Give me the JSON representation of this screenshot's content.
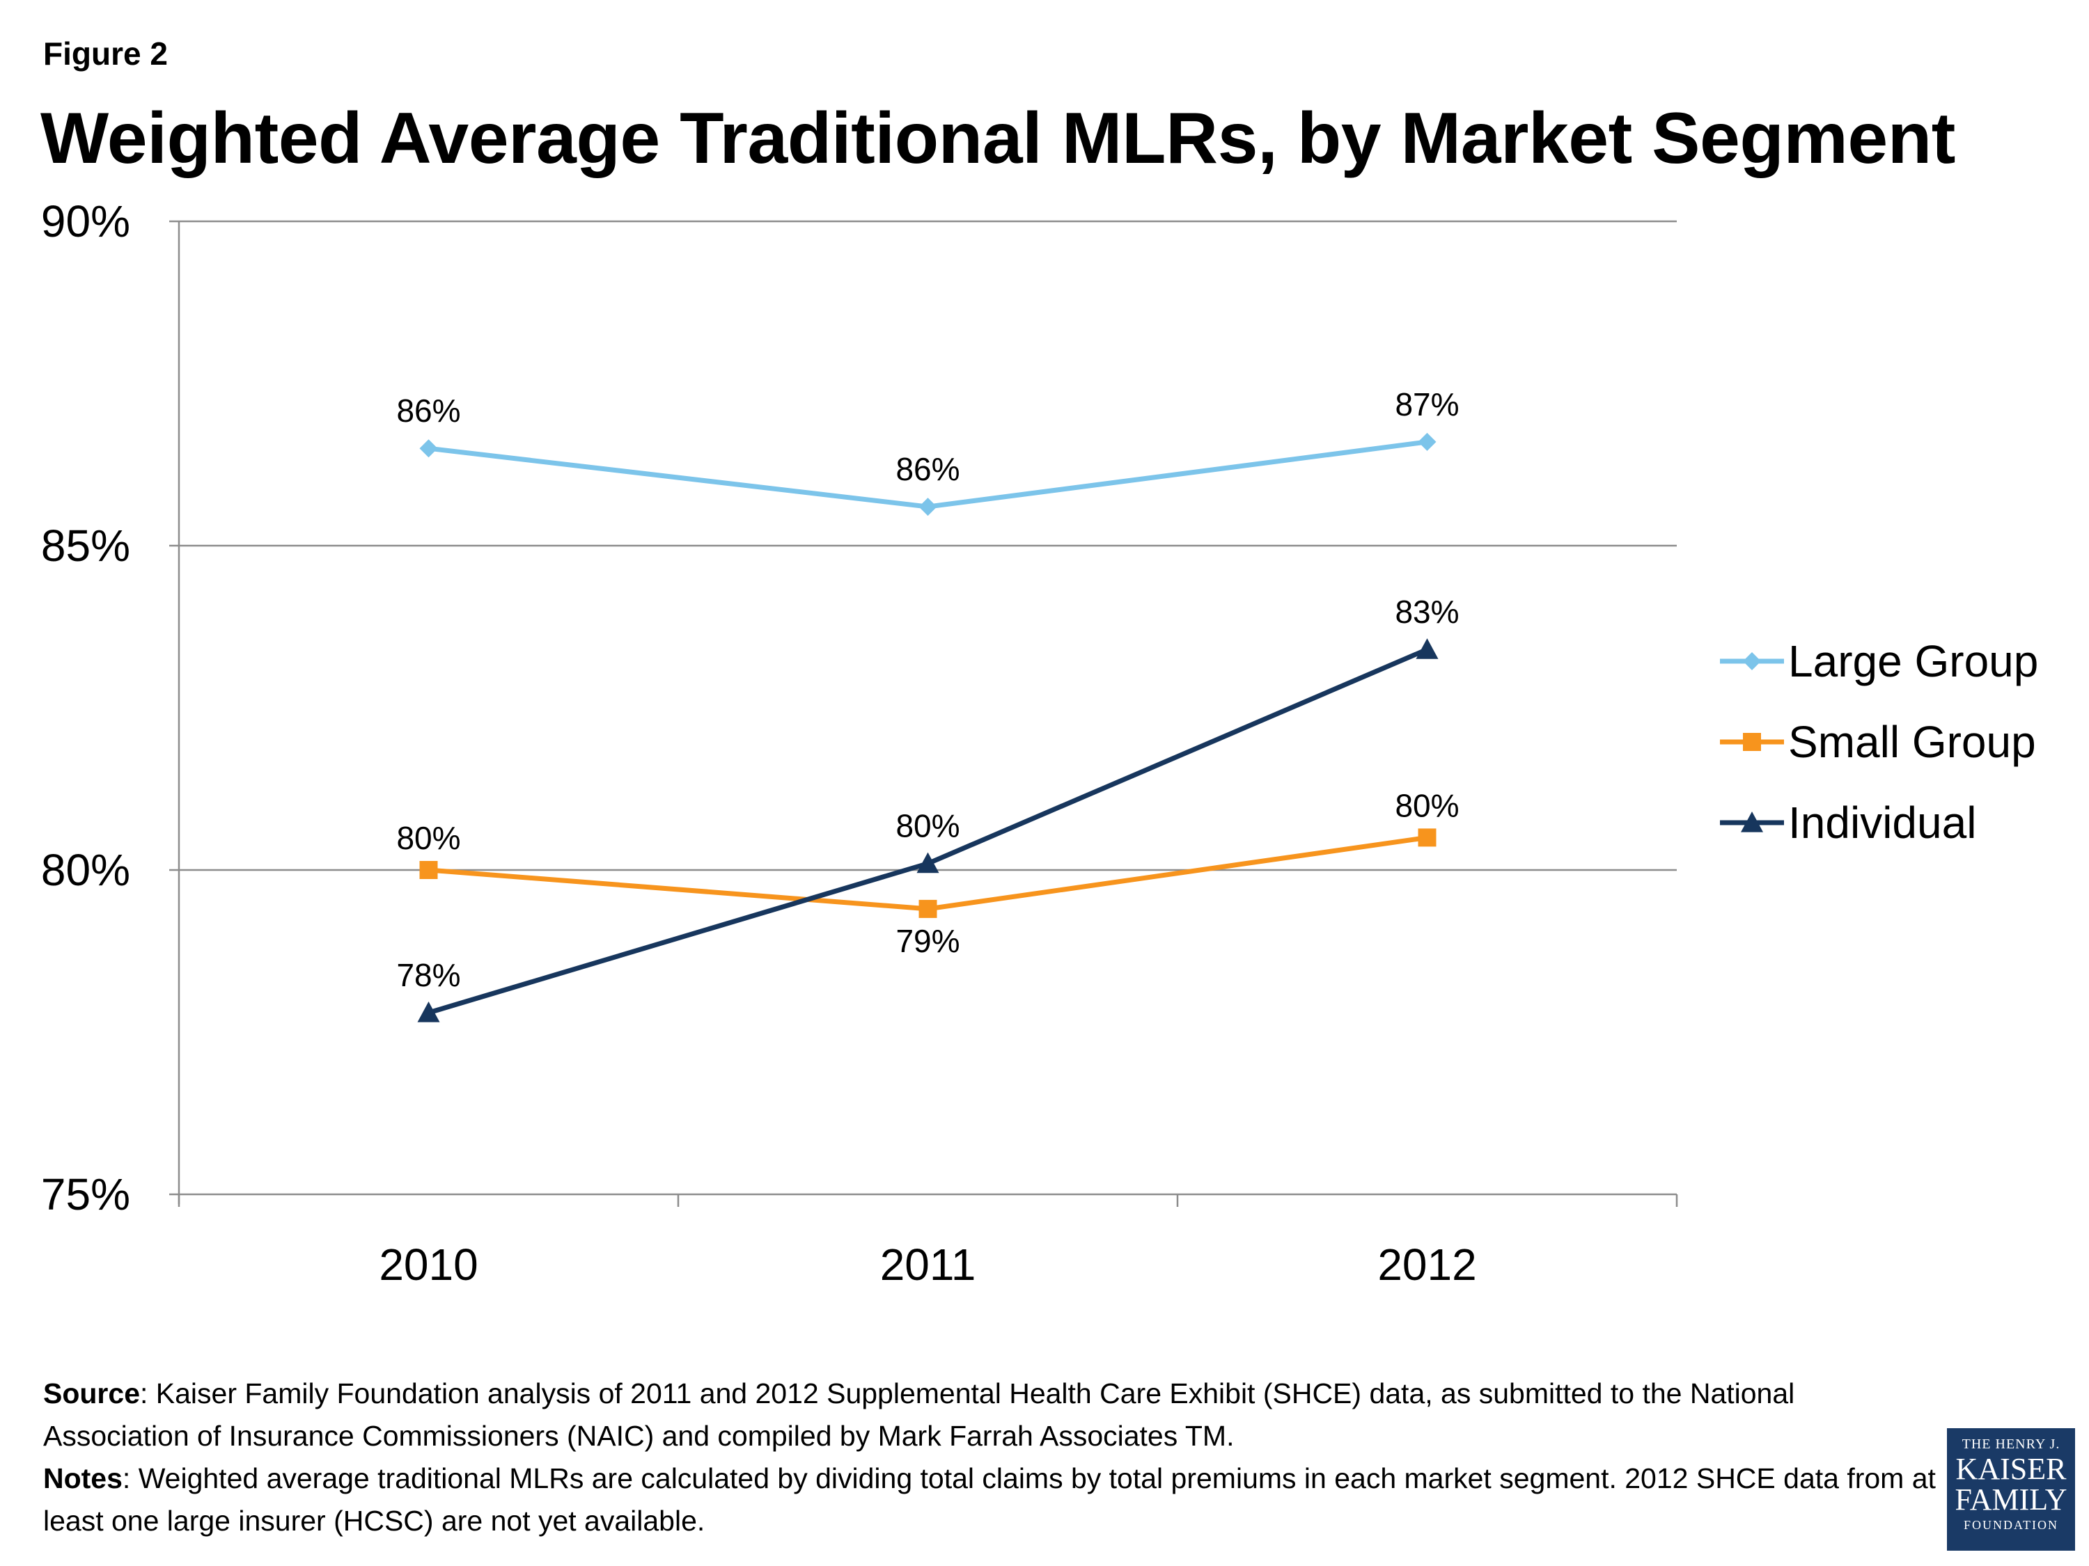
{
  "figure_label": "Figure 2",
  "title": "Weighted Average Traditional MLRs, by Market Segment",
  "chart_data": {
    "type": "line",
    "title": "Weighted Average Traditional MLRs, by Market Segment",
    "categories": [
      "2010",
      "2011",
      "2012"
    ],
    "y_tick_labels": [
      "90%",
      "85%",
      "80%",
      "75%"
    ],
    "y_ticks": [
      90,
      85,
      80,
      75
    ],
    "ylim": [
      75,
      90
    ],
    "grid": true,
    "legend_position": "right",
    "series": [
      {
        "name": "Large Group",
        "color": "#7cc4ea",
        "marker": "diamond",
        "values": [
          86.5,
          85.6,
          86.6
        ],
        "labels": [
          "86%",
          "86%",
          "87%"
        ]
      },
      {
        "name": "Small Group",
        "color": "#f7941d",
        "marker": "square",
        "values": [
          80.0,
          79.4,
          80.5
        ],
        "labels": [
          "80%",
          "79%",
          "80%"
        ]
      },
      {
        "name": "Individual",
        "color": "#17365d",
        "marker": "triangle",
        "values": [
          77.8,
          80.1,
          83.4
        ],
        "labels": [
          "78%",
          "80%",
          "83%"
        ]
      }
    ]
  },
  "footer": {
    "source_label": "Source",
    "source_text": ": Kaiser Family Foundation analysis of 2011 and 2012 Supplemental Health Care Exhibit (SHCE) data, as submitted to the National Association of Insurance Commissioners (NAIC) and compiled by Mark Farrah Associates TM.",
    "notes_label": "Notes",
    "notes_text": ": Weighted average traditional MLRs are calculated by dividing total claims by total premiums in each market segment.  2012 SHCE data from at least one large insurer (HCSC) are not yet available."
  },
  "logo": {
    "line1": "THE HENRY J.",
    "line2": "KAISER",
    "line3": "FAMILY",
    "line4": "FOUNDATION"
  }
}
